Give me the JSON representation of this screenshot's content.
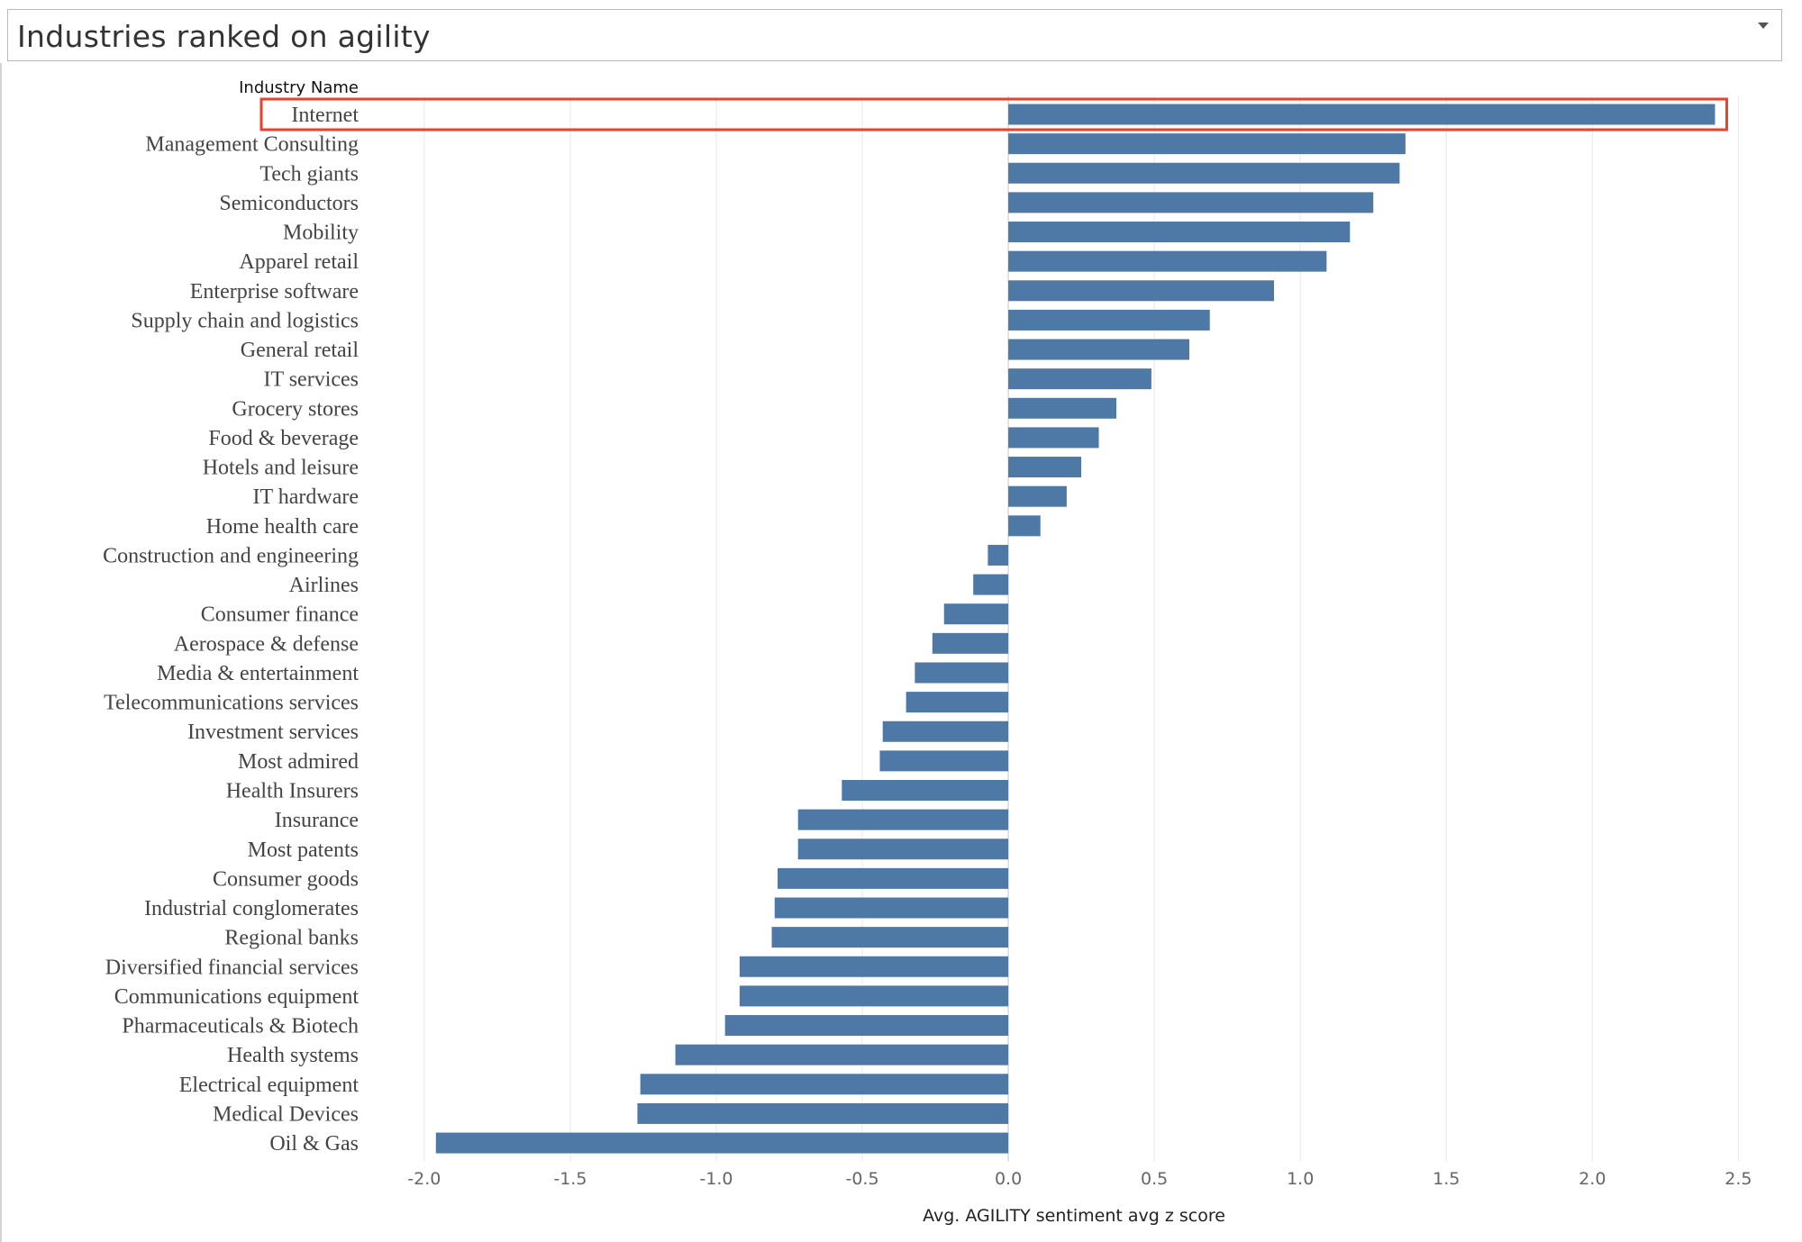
{
  "header": {
    "title": "Industries ranked on agility"
  },
  "chart_data": {
    "type": "bar",
    "orientation": "horizontal",
    "row_header": "Industry Name",
    "xlabel": "Avg. AGILITY sentiment avg z score",
    "xlim": [
      -2.2,
      2.65
    ],
    "xticks": [
      -2.0,
      -1.5,
      -1.0,
      -0.5,
      0.0,
      0.5,
      1.0,
      1.5,
      2.0,
      2.5
    ],
    "xtick_labels": [
      "-2.0",
      "-1.5",
      "-1.0",
      "-0.5",
      "0.0",
      "0.5",
      "1.0",
      "1.5",
      "2.0",
      "2.5"
    ],
    "grid": "vertical",
    "bar_color": "#4e79a7",
    "highlight_color": "#e8412c",
    "highlighted_category": "Internet",
    "categories": [
      "Internet",
      "Management Consulting",
      "Tech giants",
      "Semiconductors",
      "Mobility",
      "Apparel retail",
      "Enterprise software",
      "Supply chain and logistics",
      "General retail",
      "IT services",
      "Grocery stores",
      "Food & beverage",
      "Hotels and leisure",
      "IT hardware",
      "Home health care",
      "Construction and engineering",
      "Airlines",
      "Consumer finance",
      "Aerospace & defense",
      "Media & entertainment",
      "Telecommunications services",
      "Investment services",
      "Most admired",
      "Health Insurers",
      "Insurance",
      "Most patents",
      "Consumer goods",
      "Industrial conglomerates",
      "Regional banks",
      "Diversified financial services",
      "Communications equipment",
      "Pharmaceuticals & Biotech",
      "Health systems",
      "Electrical equipment",
      "Medical Devices",
      "Oil & Gas"
    ],
    "values": [
      2.42,
      1.36,
      1.34,
      1.25,
      1.17,
      1.09,
      0.91,
      0.69,
      0.62,
      0.49,
      0.37,
      0.31,
      0.25,
      0.2,
      0.11,
      -0.07,
      -0.12,
      -0.22,
      -0.26,
      -0.32,
      -0.35,
      -0.43,
      -0.44,
      -0.57,
      -0.72,
      -0.72,
      -0.79,
      -0.8,
      -0.81,
      -0.92,
      -0.92,
      -0.97,
      -1.14,
      -1.26,
      -1.27,
      -1.96
    ]
  }
}
